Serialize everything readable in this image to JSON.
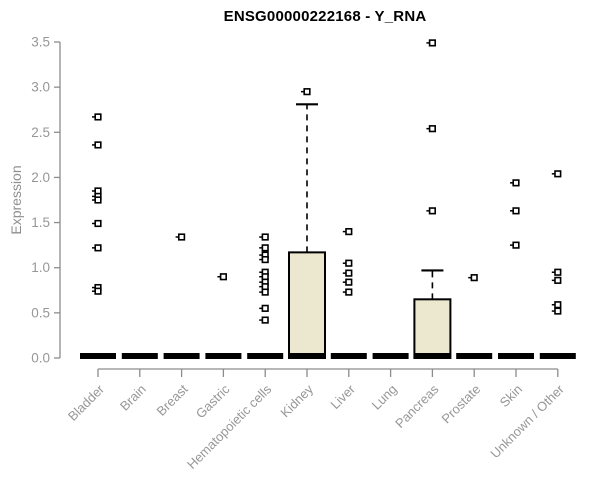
{
  "title": "ENSG00000222168 - Y_RNA",
  "colors": {
    "background": "#ffffff",
    "title": "#000000",
    "axis": "#8c8c8c",
    "tick_label": "#979797",
    "box_fill": "#ece7cf",
    "box_border": "#000000",
    "median": "#000000",
    "outlier": "#000000"
  },
  "chart_data": {
    "type": "boxplot",
    "title": "ENSG00000222168 - Y_RNA",
    "xlabel": "",
    "ylabel": "Expression",
    "ylim": [
      0.0,
      3.5
    ],
    "yticks": [
      0.0,
      0.5,
      1.0,
      1.5,
      2.0,
      2.5,
      3.0,
      3.5
    ],
    "grid": false,
    "legend": false,
    "categories": [
      "Bladder",
      "Brain",
      "Breast",
      "Gastric",
      "Hematopoietic cells",
      "Kidney",
      "Liver",
      "Lung",
      "Pancreas",
      "Prostate",
      "Skin",
      "Unknown / Other"
    ],
    "boxes": [
      {
        "category": "Bladder",
        "median": 0.0,
        "q1": 0.0,
        "q3": 0.0,
        "whisker_low": 0.0,
        "whisker_high": 0.0,
        "outliers": [
          2.67,
          2.36,
          1.85,
          1.79,
          1.75,
          1.49,
          1.22,
          0.78,
          0.74
        ]
      },
      {
        "category": "Brain",
        "median": 0.0,
        "q1": 0.0,
        "q3": 0.0,
        "whisker_low": 0.0,
        "whisker_high": 0.0,
        "outliers": []
      },
      {
        "category": "Breast",
        "median": 0.0,
        "q1": 0.0,
        "q3": 0.0,
        "whisker_low": 0.0,
        "whisker_high": 0.0,
        "outliers": [
          1.34
        ]
      },
      {
        "category": "Gastric",
        "median": 0.0,
        "q1": 0.0,
        "q3": 0.0,
        "whisker_low": 0.0,
        "whisker_high": 0.0,
        "outliers": [
          0.9
        ]
      },
      {
        "category": "Hematopoietic cells",
        "median": 0.0,
        "q1": 0.0,
        "q3": 0.0,
        "whisker_low": 0.0,
        "whisker_high": 0.0,
        "outliers": [
          1.34,
          1.22,
          1.14,
          1.09,
          0.95,
          0.9,
          0.84,
          0.79,
          0.73,
          0.55,
          0.42
        ]
      },
      {
        "category": "Kidney",
        "median": 0.0,
        "q1": 0.0,
        "q3": 1.17,
        "whisker_low": 0.0,
        "whisker_high": 2.81,
        "outliers": [
          2.95
        ]
      },
      {
        "category": "Liver",
        "median": 0.0,
        "q1": 0.0,
        "q3": 0.0,
        "whisker_low": 0.0,
        "whisker_high": 0.0,
        "outliers": [
          1.4,
          1.05,
          0.94,
          0.84,
          0.73
        ]
      },
      {
        "category": "Lung",
        "median": 0.0,
        "q1": 0.0,
        "q3": 0.0,
        "whisker_low": 0.0,
        "whisker_high": 0.0,
        "outliers": []
      },
      {
        "category": "Pancreas",
        "median": 0.0,
        "q1": 0.0,
        "q3": 0.65,
        "whisker_low": 0.0,
        "whisker_high": 0.97,
        "outliers": [
          3.49,
          2.54,
          1.63
        ]
      },
      {
        "category": "Prostate",
        "median": 0.0,
        "q1": 0.0,
        "q3": 0.0,
        "whisker_low": 0.0,
        "whisker_high": 0.0,
        "outliers": [
          0.89
        ]
      },
      {
        "category": "Skin",
        "median": 0.0,
        "q1": 0.0,
        "q3": 0.0,
        "whisker_low": 0.0,
        "whisker_high": 0.0,
        "outliers": [
          1.94,
          1.63,
          1.25
        ]
      },
      {
        "category": "Unknown / Other",
        "median": 0.0,
        "q1": 0.0,
        "q3": 0.0,
        "whisker_low": 0.0,
        "whisker_high": 0.0,
        "outliers": [
          2.04,
          0.95,
          0.86,
          0.59,
          0.52
        ]
      }
    ]
  }
}
